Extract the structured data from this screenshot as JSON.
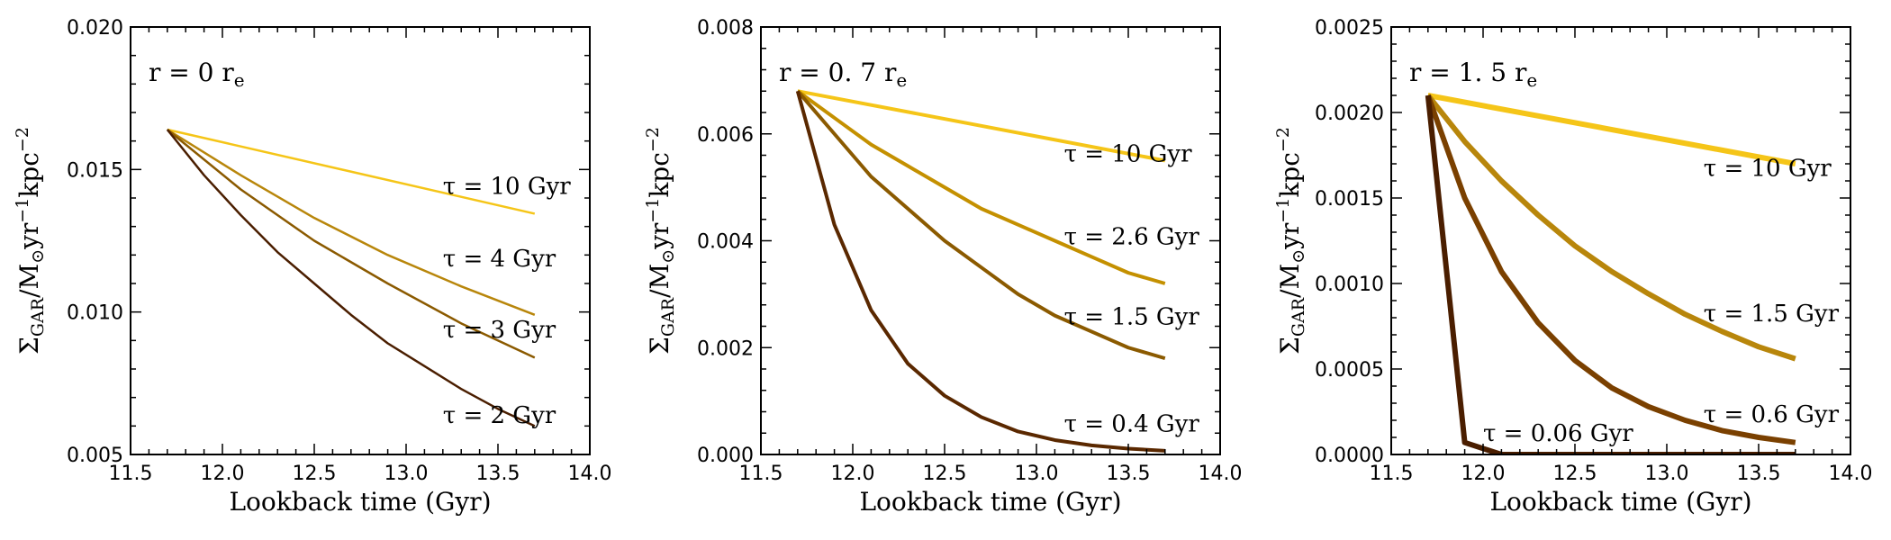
{
  "chart_data": [
    {
      "type": "line",
      "title": "r = 0 r_e",
      "title_parts": {
        "main": "r = 0 r",
        "sub": "e"
      },
      "xlabel": "Lookback time (Gyr)",
      "ylabel": {
        "sigma": "Σ",
        "sub": "GAR",
        "mid": "/M",
        "odot": "⊙",
        "yr": "yr",
        "exp1": "−1",
        "kpc": "kpc",
        "exp2": "−2"
      },
      "xlim": [
        11.5,
        14.0
      ],
      "ylim": [
        0.005,
        0.02
      ],
      "xticks": [
        11.5,
        12.0,
        12.5,
        13.0,
        13.5,
        14.0
      ],
      "xtick_labels": [
        "11.5",
        "12.0",
        "12.5",
        "13.0",
        "13.5",
        "14.0"
      ],
      "yticks": [
        0.005,
        0.01,
        0.015,
        0.02
      ],
      "ytick_labels": [
        "0.005",
        "0.010",
        "0.015",
        "0.020"
      ],
      "series": [
        {
          "name": "τ = 10 Gyr",
          "tau": 10,
          "label": "τ = 10 Gyr",
          "color": "#f5c518",
          "width": 2.5,
          "x": [
            11.7,
            13.7
          ],
          "y": [
            0.0164,
            0.01345
          ],
          "label_at": [
            13.2,
            0.01415
          ]
        },
        {
          "name": "τ = 4 Gyr",
          "tau": 4,
          "label": "τ = 4 Gyr",
          "color": "#b8860b",
          "width": 2.5,
          "x": [
            11.7,
            12.1,
            12.5,
            12.9,
            13.3,
            13.7
          ],
          "y": [
            0.0164,
            0.0148,
            0.0133,
            0.012,
            0.0109,
            0.0099
          ],
          "label_at": [
            13.2,
            0.0116
          ]
        },
        {
          "name": "τ = 3 Gyr",
          "tau": 3,
          "label": "τ = 3 Gyr",
          "color": "#8b5a00",
          "width": 2.5,
          "x": [
            11.7,
            12.1,
            12.5,
            12.9,
            13.3,
            13.7
          ],
          "y": [
            0.0164,
            0.0143,
            0.0125,
            0.011,
            0.0096,
            0.0084
          ],
          "label_at": [
            13.2,
            0.0091
          ]
        },
        {
          "name": "τ = 2 Gyr",
          "tau": 2,
          "label": "τ = 2 Gyr",
          "color": "#4a1e00",
          "width": 2.5,
          "x": [
            11.7,
            11.9,
            12.1,
            12.3,
            12.5,
            12.7,
            12.9,
            13.1,
            13.3,
            13.5,
            13.7
          ],
          "y": [
            0.0164,
            0.0148,
            0.0134,
            0.0121,
            0.011,
            0.0099,
            0.0089,
            0.0081,
            0.0073,
            0.0066,
            0.006
          ],
          "label_at": [
            13.2,
            0.0061
          ]
        }
      ]
    },
    {
      "type": "line",
      "title": "r = 0. 7 r_e",
      "title_parts": {
        "main": "r = 0. 7 r",
        "sub": "e"
      },
      "xlabel": "Lookback time (Gyr)",
      "ylabel": {
        "sigma": "Σ",
        "sub": "GAR",
        "mid": "/M",
        "odot": "⊙",
        "yr": "yr",
        "exp1": "−1",
        "kpc": "kpc",
        "exp2": "−2"
      },
      "xlim": [
        11.5,
        14.0
      ],
      "ylim": [
        0.0,
        0.008
      ],
      "xticks": [
        11.5,
        12.0,
        12.5,
        13.0,
        13.5,
        14.0
      ],
      "xtick_labels": [
        "11.5",
        "12.0",
        "12.5",
        "13.0",
        "13.5",
        "14.0"
      ],
      "yticks": [
        0.0,
        0.002,
        0.004,
        0.006,
        0.008
      ],
      "ytick_labels": [
        "0.000",
        "0.002",
        "0.004",
        "0.006",
        "0.008"
      ],
      "series": [
        {
          "name": "τ = 10 Gyr",
          "tau": 10,
          "label": "τ = 10 Gyr",
          "color": "#f5c518",
          "width": 4,
          "x": [
            11.7,
            13.7
          ],
          "y": [
            0.0068,
            0.0055
          ],
          "label_at": [
            13.15,
            0.00548
          ]
        },
        {
          "name": "τ = 2.6 Gyr",
          "tau": 2.6,
          "label": "τ = 2.6 Gyr",
          "color": "#c49000",
          "width": 4,
          "x": [
            11.7,
            11.9,
            12.1,
            12.3,
            12.5,
            12.7,
            12.9,
            13.1,
            13.3,
            13.5,
            13.7
          ],
          "y": [
            0.0068,
            0.0063,
            0.0058,
            0.0054,
            0.005,
            0.0046,
            0.0043,
            0.004,
            0.0037,
            0.0034,
            0.0032
          ],
          "label_at": [
            13.15,
            0.00393
          ]
        },
        {
          "name": "τ = 1.5 Gyr",
          "tau": 1.5,
          "label": "τ = 1.5 Gyr",
          "color": "#8b5a00",
          "width": 4,
          "x": [
            11.7,
            11.9,
            12.1,
            12.3,
            12.5,
            12.7,
            12.9,
            13.1,
            13.3,
            13.5,
            13.7
          ],
          "y": [
            0.0068,
            0.006,
            0.0052,
            0.0046,
            0.004,
            0.0035,
            0.003,
            0.0026,
            0.0023,
            0.002,
            0.0018
          ],
          "label_at": [
            13.15,
            0.00243
          ]
        },
        {
          "name": "τ = 0.4 Gyr",
          "tau": 0.4,
          "label": "τ = 0.4 Gyr",
          "color": "#5a2800",
          "width": 4,
          "x": [
            11.7,
            11.9,
            12.1,
            12.3,
            12.5,
            12.7,
            12.9,
            13.1,
            13.3,
            13.5,
            13.7
          ],
          "y": [
            0.0068,
            0.0043,
            0.0027,
            0.0017,
            0.0011,
            0.0007,
            0.00043,
            0.00027,
            0.00017,
            0.00011,
            7e-05
          ],
          "label_at": [
            13.15,
            0.00043
          ]
        }
      ]
    },
    {
      "type": "line",
      "title": "r = 1. 5 r_e",
      "title_parts": {
        "main": "r = 1. 5 r",
        "sub": "e"
      },
      "xlabel": "Lookback time (Gyr)",
      "ylabel": {
        "sigma": "Σ",
        "sub": "GAR",
        "mid": "/M",
        "odot": "⊙",
        "yr": "yr",
        "exp1": "−1",
        "kpc": "kpc",
        "exp2": "−2"
      },
      "xlim": [
        11.5,
        14.0
      ],
      "ylim": [
        0.0,
        0.0025
      ],
      "xticks": [
        11.5,
        12.0,
        12.5,
        13.0,
        13.5,
        14.0
      ],
      "xtick_labels": [
        "11.5",
        "12.0",
        "12.5",
        "13.0",
        "13.5",
        "14.0"
      ],
      "yticks": [
        0.0,
        0.0005,
        0.001,
        0.0015,
        0.002,
        0.0025
      ],
      "ytick_labels": [
        "0.0000",
        "0.0005",
        "0.0010",
        "0.0015",
        "0.0020",
        "0.0025"
      ],
      "series": [
        {
          "name": "τ = 10 Gyr",
          "tau": 10,
          "label": "τ = 10 Gyr",
          "color": "#f5c518",
          "width": 6,
          "x": [
            11.7,
            13.7
          ],
          "y": [
            0.0021,
            0.0017
          ],
          "label_at": [
            13.2,
            0.00163
          ]
        },
        {
          "name": "τ = 1.5 Gyr",
          "tau": 1.5,
          "label": "τ = 1.5 Gyr",
          "color": "#b8860b",
          "width": 6,
          "x": [
            11.7,
            11.9,
            12.1,
            12.3,
            12.5,
            12.7,
            12.9,
            13.1,
            13.3,
            13.5,
            13.7
          ],
          "y": [
            0.0021,
            0.00183,
            0.0016,
            0.0014,
            0.00122,
            0.00107,
            0.00094,
            0.00082,
            0.00072,
            0.00063,
            0.00056
          ],
          "label_at": [
            13.2,
            0.00078
          ]
        },
        {
          "name": "τ = 0.6 Gyr",
          "tau": 0.6,
          "label": "τ = 0.6 Gyr",
          "color": "#7a4000",
          "width": 6,
          "x": [
            11.7,
            11.9,
            12.1,
            12.3,
            12.5,
            12.7,
            12.9,
            13.1,
            13.3,
            13.5,
            13.7
          ],
          "y": [
            0.0021,
            0.0015,
            0.00107,
            0.00077,
            0.00055,
            0.00039,
            0.00028,
            0.0002,
            0.00014,
            0.0001,
            7e-05
          ],
          "label_at": [
            13.2,
            0.00019
          ]
        },
        {
          "name": "τ = 0.06 Gyr",
          "tau": 0.06,
          "label": "τ = 0.06 Gyr",
          "color": "#4a1e00",
          "width": 6,
          "x": [
            11.7,
            11.9,
            12.1,
            12.3,
            12.5,
            12.7,
            12.9,
            13.1,
            13.3,
            13.5,
            13.7
          ],
          "y": [
            0.0021,
            7e-05,
            0.0,
            0.0,
            0.0,
            0.0,
            0.0,
            0.0,
            0.0,
            0.0,
            0.0
          ],
          "label_at": [
            12.0,
            8e-05
          ]
        }
      ]
    }
  ]
}
